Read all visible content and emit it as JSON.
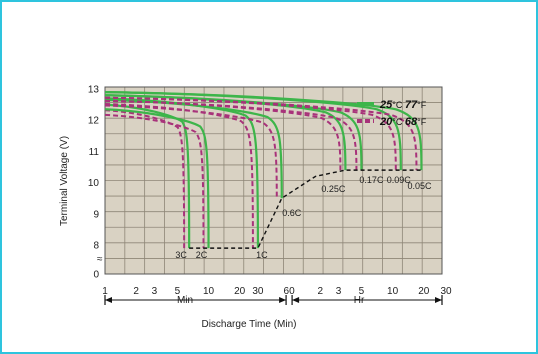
{
  "chart_data": {
    "type": "line",
    "ylabel": "Terminal Voltage (V)",
    "xlabel": "Discharge Time (Min)",
    "ylim": [
      0,
      13.5
    ],
    "y_ticks": [
      0,
      8,
      9,
      10,
      11,
      12,
      13
    ],
    "y_break_label": "≈",
    "x_ticks_min": [
      "1",
      "2",
      "3",
      "5",
      "10",
      "20",
      "30",
      "60"
    ],
    "x_ticks_hr": [
      "2",
      "3",
      "5",
      "10",
      "20",
      "30"
    ],
    "x_unit_min": "Min",
    "x_unit_hr": "Hr",
    "grid": true,
    "legend_position": "top-right",
    "legend": [
      {
        "temp_c": "25",
        "deg_c": "°C",
        "temp_f": "77",
        "deg_f": "°F",
        "color": "#3db54a",
        "style": "solid"
      },
      {
        "temp_c": "20",
        "deg_c": "°C",
        "temp_f": "68",
        "deg_f": "°F",
        "color": "#a8327a",
        "style": "dashed"
      }
    ],
    "series": [
      {
        "rate": "3C",
        "start_v": 12.5,
        "end_min": 6.5
      },
      {
        "rate": "2C",
        "start_v": 12.35,
        "end_min": 10
      },
      {
        "rate": "1C",
        "start_v": 12.7,
        "end_min": 30
      },
      {
        "rate": "0.6C",
        "start_v": 12.65,
        "end_min": 51
      },
      {
        "rate": "0.25C",
        "start_v": 12.8,
        "end_min": 210
      },
      {
        "rate": "0.17C",
        "start_v": 12.8,
        "end_min": 300
      },
      {
        "rate": "0.09C",
        "start_v": 12.9,
        "end_min": 720
      },
      {
        "rate": "0.05C",
        "start_v": 12.9,
        "end_min": 1140
      }
    ],
    "cutoff_line": [
      {
        "x_min": 6.5,
        "y": 7.9
      },
      {
        "x_min": 30,
        "y": 7.9
      },
      {
        "x_min": 51,
        "y": 9.5
      },
      {
        "x_min": 108,
        "y": 10.2
      },
      {
        "x_min": 210,
        "y": 10.4
      },
      {
        "x_min": 1140,
        "y": 10.4
      }
    ]
  }
}
